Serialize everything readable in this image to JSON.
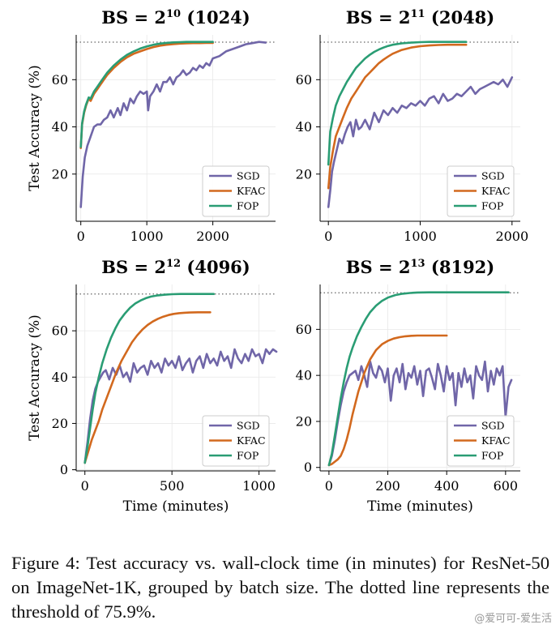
{
  "chart_data": [
    {
      "type": "line",
      "title_main": "BS = 2",
      "title_exp": "10",
      "title_suffix": " (1024)",
      "xlabel": "",
      "ylabel": "Test Accuracy (%)",
      "xlim": [
        -70,
        2950
      ],
      "ylim": [
        0,
        79
      ],
      "xticks": [
        0,
        1000,
        2000
      ],
      "yticks": [
        20,
        40,
        60
      ],
      "threshold": 75.9,
      "legend_position": "lower right",
      "grid": true,
      "series": [
        {
          "name": "SGD",
          "color": "#7066a8",
          "x": [
            0,
            30,
            60,
            100,
            150,
            200,
            250,
            300,
            350,
            400,
            450,
            500,
            560,
            600,
            650,
            700,
            750,
            800,
            850,
            900,
            950,
            1000,
            1020,
            1050,
            1100,
            1150,
            1200,
            1250,
            1300,
            1350,
            1400,
            1450,
            1500,
            1550,
            1600,
            1650,
            1700,
            1750,
            1800,
            1850,
            1900,
            1950,
            2000,
            2100,
            2200,
            2300,
            2400,
            2500,
            2600,
            2700,
            2800
          ],
          "y": [
            6,
            19,
            27,
            32,
            36,
            40,
            41,
            41,
            43,
            44,
            47,
            44,
            48,
            45,
            50,
            47,
            52,
            50,
            53,
            55,
            54,
            55,
            47,
            53,
            55,
            58,
            55,
            59,
            59,
            61,
            58,
            61,
            62,
            64,
            62,
            63,
            65,
            64,
            66,
            65,
            67,
            66,
            69,
            70,
            72,
            73,
            74,
            75,
            75.5,
            76,
            75.7
          ]
        },
        {
          "name": "KFAC",
          "color": "#d2691e",
          "x": [
            0,
            20,
            50,
            80,
            120,
            150,
            200,
            250,
            300,
            350,
            400,
            500,
            600,
            700,
            800,
            900,
            1000,
            1100,
            1200,
            1300,
            1400,
            1500,
            1600,
            1700,
            1800,
            1900,
            2000
          ],
          "y": [
            31,
            41,
            46,
            49,
            52,
            51,
            54,
            56,
            58,
            60,
            62,
            65,
            67.5,
            69.5,
            71,
            72,
            73,
            73.8,
            74.4,
            74.8,
            75.1,
            75.3,
            75.4,
            75.5,
            75.5,
            75.6,
            75.6
          ]
        },
        {
          "name": "FOP",
          "color": "#2a9d74",
          "x": [
            0,
            20,
            50,
            80,
            120,
            150,
            200,
            250,
            300,
            350,
            400,
            500,
            600,
            700,
            800,
            900,
            1000,
            1100,
            1200,
            1300,
            1400,
            1500,
            1600,
            1700,
            1800,
            1900,
            2000
          ],
          "y": [
            31.5,
            41.5,
            46.5,
            49.5,
            52.5,
            52,
            55,
            57,
            59,
            61,
            63,
            66,
            68.5,
            70.5,
            72,
            73.2,
            74.1,
            74.8,
            75.3,
            75.6,
            75.8,
            75.9,
            76,
            76,
            76,
            76,
            76
          ]
        }
      ]
    },
    {
      "type": "line",
      "title_main": "BS = 2",
      "title_exp": "11",
      "title_suffix": " (2048)",
      "xlabel": "",
      "ylabel": "",
      "xlim": [
        -90,
        2090
      ],
      "ylim": [
        0,
        79
      ],
      "xticks": [
        0,
        1000,
        2000
      ],
      "yticks": [
        20,
        40,
        60
      ],
      "threshold": 75.9,
      "legend_position": "lower right",
      "grid": true,
      "series": [
        {
          "name": "SGD",
          "color": "#7066a8",
          "x": [
            0,
            20,
            40,
            60,
            90,
            120,
            150,
            180,
            210,
            240,
            270,
            300,
            330,
            360,
            400,
            450,
            500,
            550,
            600,
            650,
            700,
            750,
            800,
            850,
            900,
            950,
            1000,
            1050,
            1100,
            1150,
            1200,
            1250,
            1300,
            1350,
            1400,
            1450,
            1500,
            1550,
            1600,
            1650,
            1700,
            1750,
            1800,
            1850,
            1900,
            1950,
            2000
          ],
          "y": [
            6,
            13,
            21,
            25,
            30,
            35,
            33,
            37,
            40,
            42,
            36,
            43,
            39,
            40,
            43,
            39,
            46,
            42,
            47,
            45,
            48,
            46,
            49,
            48,
            50,
            49,
            51,
            49,
            52,
            53,
            50,
            54,
            51,
            52,
            54,
            53,
            55,
            57,
            54,
            56,
            57,
            58,
            59,
            58,
            60,
            57,
            61
          ]
        },
        {
          "name": "KFAC",
          "color": "#d2691e",
          "x": [
            0,
            20,
            50,
            80,
            120,
            160,
            200,
            250,
            300,
            350,
            400,
            450,
            500,
            550,
            600,
            650,
            700,
            800,
            900,
            1000,
            1100,
            1200,
            1300,
            1400,
            1450,
            1500
          ],
          "y": [
            14,
            23,
            30,
            36,
            40,
            44,
            48,
            52,
            55,
            58,
            61,
            63,
            65,
            67,
            68.5,
            69.8,
            71,
            72.6,
            73.6,
            74.2,
            74.5,
            74.7,
            74.8,
            74.8,
            74.8,
            74.8
          ]
        },
        {
          "name": "FOP",
          "color": "#2a9d74",
          "x": [
            0,
            20,
            50,
            80,
            120,
            160,
            200,
            250,
            300,
            350,
            400,
            450,
            500,
            550,
            600,
            650,
            700,
            800,
            900,
            1000,
            1100,
            1200,
            1300,
            1400,
            1500
          ],
          "y": [
            24,
            38,
            44,
            49,
            53,
            56,
            59,
            62,
            65,
            67,
            69,
            70.5,
            71.8,
            72.8,
            73.6,
            74.3,
            74.8,
            75.4,
            75.7,
            75.9,
            76,
            76,
            76,
            76,
            76
          ]
        }
      ]
    },
    {
      "type": "line",
      "title_main": "BS = 2",
      "title_exp": "12",
      "title_suffix": " (4096)",
      "xlabel": "Time (minutes)",
      "ylabel": "Test Accuracy (%)",
      "xlim": [
        -50,
        1095
      ],
      "ylim": [
        -0.5,
        80
      ],
      "xticks": [
        0,
        500,
        1000
      ],
      "yticks": [
        0,
        20,
        40,
        60
      ],
      "threshold": 75.9,
      "legend_position": "lower right",
      "grid": true,
      "series": [
        {
          "name": "SGD",
          "color": "#7066a8",
          "x": [
            0,
            15,
            30,
            45,
            60,
            75,
            90,
            105,
            120,
            140,
            160,
            180,
            200,
            220,
            240,
            260,
            280,
            300,
            320,
            340,
            360,
            380,
            400,
            420,
            440,
            460,
            480,
            500,
            520,
            540,
            560,
            580,
            600,
            620,
            640,
            660,
            680,
            700,
            720,
            740,
            760,
            780,
            800,
            820,
            840,
            860,
            880,
            900,
            920,
            940,
            960,
            980,
            1000,
            1020,
            1040,
            1060,
            1080,
            1100
          ],
          "y": [
            3,
            12,
            22,
            30,
            35,
            38,
            40,
            42,
            43,
            39,
            44,
            41,
            45,
            40,
            42,
            38,
            46,
            42,
            44,
            45,
            41,
            47,
            44,
            46,
            42,
            48,
            45,
            47,
            44,
            49,
            43,
            46,
            48,
            42,
            47,
            49,
            44,
            50,
            46,
            48,
            45,
            51,
            47,
            49,
            44,
            52,
            48,
            46,
            50,
            47,
            52,
            49,
            50,
            46,
            52,
            50,
            52,
            51
          ]
        },
        {
          "name": "KFAC",
          "color": "#d2691e",
          "x": [
            0,
            20,
            40,
            60,
            80,
            100,
            120,
            150,
            180,
            210,
            240,
            270,
            300,
            330,
            360,
            390,
            420,
            450,
            480,
            510,
            540,
            570,
            600,
            650,
            700,
            720
          ],
          "y": [
            3,
            8,
            13,
            17,
            21,
            26,
            30,
            36,
            42,
            47,
            51,
            55,
            58,
            60.5,
            62.5,
            64,
            65.2,
            66.1,
            66.8,
            67.3,
            67.6,
            67.8,
            67.9,
            68,
            68,
            68
          ]
        },
        {
          "name": "FOP",
          "color": "#2a9d74",
          "x": [
            0,
            15,
            30,
            45,
            60,
            80,
            100,
            125,
            150,
            175,
            200,
            230,
            260,
            290,
            320,
            350,
            380,
            420,
            460,
            500,
            550,
            600,
            650,
            700,
            740
          ],
          "y": [
            3,
            10,
            18,
            26,
            33,
            40,
            46,
            52,
            57,
            61,
            64.5,
            67.5,
            70,
            71.8,
            73.1,
            74.1,
            74.8,
            75.3,
            75.6,
            75.8,
            75.9,
            75.9,
            75.9,
            75.9,
            75.9
          ]
        }
      ]
    },
    {
      "type": "line",
      "title_main": "BS = 2",
      "title_exp": "13",
      "title_suffix": " (8192)",
      "xlabel": "Time (minutes)",
      "ylabel": "",
      "xlim": [
        -30,
        650
      ],
      "ylim": [
        -1.5,
        79.5
      ],
      "xticks": [
        0,
        200,
        400,
        600
      ],
      "yticks": [
        0,
        20,
        40,
        60
      ],
      "threshold": 75.9,
      "legend_position": "lower right",
      "grid": true,
      "series": [
        {
          "name": "SGD",
          "color": "#7066a8",
          "x": [
            0,
            10,
            20,
            30,
            40,
            50,
            60,
            70,
            80,
            90,
            100,
            110,
            120,
            130,
            140,
            150,
            160,
            170,
            180,
            190,
            200,
            210,
            220,
            230,
            240,
            250,
            260,
            270,
            280,
            290,
            300,
            310,
            320,
            330,
            340,
            350,
            360,
            370,
            380,
            390,
            400,
            410,
            420,
            430,
            440,
            450,
            460,
            470,
            480,
            490,
            500,
            510,
            520,
            530,
            540,
            550,
            560,
            570,
            580,
            590,
            600,
            610,
            620
          ],
          "y": [
            1,
            5,
            12,
            20,
            27,
            33,
            37,
            40,
            41,
            42,
            38,
            44,
            40,
            35,
            46,
            41,
            39,
            44,
            42,
            37,
            43,
            29,
            40,
            43,
            37,
            45,
            34,
            41,
            39,
            44,
            36,
            42,
            31,
            42,
            43,
            39,
            34,
            45,
            40,
            33,
            44,
            38,
            41,
            27,
            41,
            35,
            43,
            37,
            40,
            30,
            44,
            40,
            38,
            46,
            33,
            42,
            36,
            43,
            40,
            44,
            22,
            35,
            38
          ]
        },
        {
          "name": "KFAC",
          "color": "#d2691e",
          "x": [
            0,
            10,
            20,
            30,
            40,
            50,
            60,
            70,
            80,
            90,
            100,
            110,
            120,
            130,
            140,
            160,
            180,
            200,
            220,
            240,
            260,
            280,
            300,
            330,
            360,
            400
          ],
          "y": [
            1,
            1.5,
            2.5,
            3.5,
            5,
            8,
            12,
            17,
            23,
            28,
            33,
            37,
            41,
            44,
            47,
            51,
            53.5,
            55,
            56,
            56.6,
            57,
            57.2,
            57.3,
            57.3,
            57.3,
            57.3
          ]
        },
        {
          "name": "FOP",
          "color": "#2a9d74",
          "x": [
            0,
            10,
            20,
            30,
            40,
            50,
            60,
            70,
            80,
            95,
            110,
            125,
            140,
            160,
            180,
            200,
            225,
            250,
            275,
            300,
            340,
            380,
            420,
            460,
            500,
            540,
            580,
            610
          ],
          "y": [
            1,
            6,
            14,
            22,
            30,
            37,
            43,
            48,
            52,
            57,
            61,
            64.5,
            67.5,
            70.3,
            72.4,
            73.8,
            74.9,
            75.5,
            75.8,
            76,
            76.1,
            76.1,
            76.1,
            76.1,
            76.1,
            76.1,
            76.1,
            76.1
          ]
        }
      ]
    }
  ],
  "caption": "Figure 4: Test accuracy vs. wall-clock time (in minutes) for ResNet-50 on ImageNet-1K, grouped by batch size. The dotted line represents the threshold of 75.9%.",
  "watermark": "@爱可可-爱生活"
}
